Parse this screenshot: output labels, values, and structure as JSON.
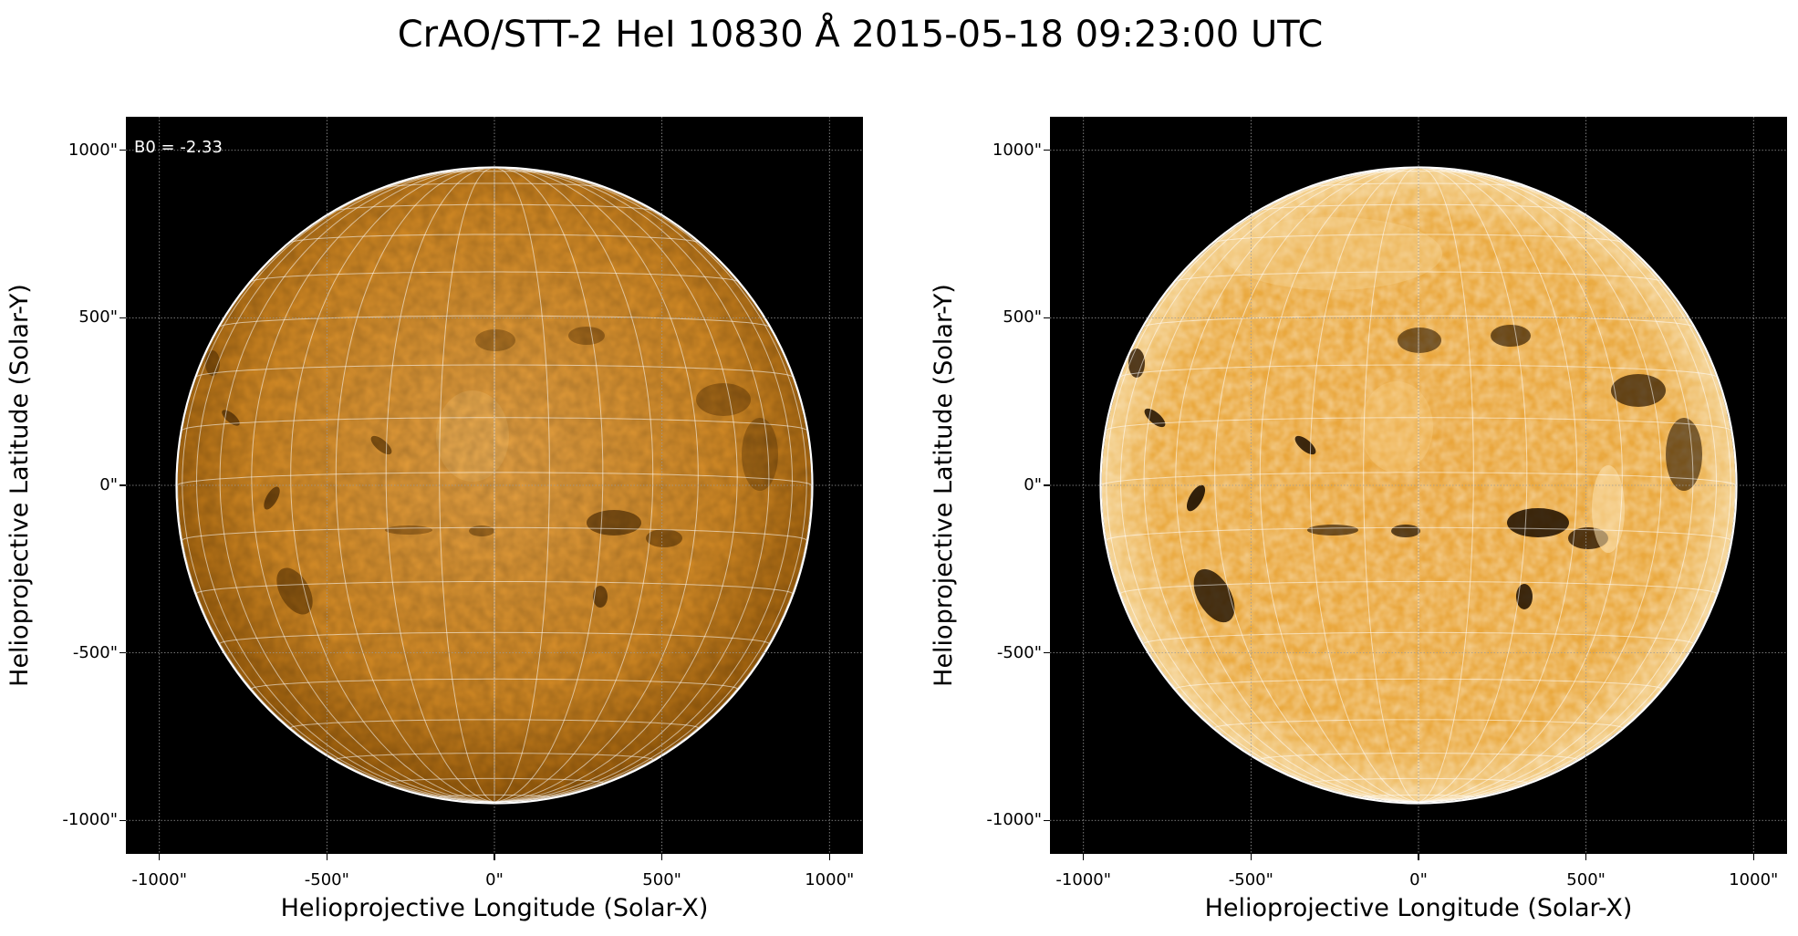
{
  "title": "CrAO/STT-2 HeI 10830 Å 2015-05-18 09:23:00 UTC",
  "panels": [
    {
      "id": "left",
      "annotation": "B0 = -2.33",
      "xlabel": "Helioprojective Longitude (Solar-X)",
      "ylabel": "Helioprojective Latitude (Solar-Y)",
      "xticks": [
        "-1000\"",
        "-500\"",
        "0\"",
        "500\"",
        "1000\""
      ],
      "yticks": [
        "1000\"",
        "500\"",
        "0\"",
        "-500\"",
        "-1000\""
      ],
      "disk_colors": {
        "center": "#e7a040",
        "edge": "#c27a16",
        "limb": "#8d5408"
      }
    },
    {
      "id": "right",
      "annotation": "",
      "xlabel": "Helioprojective Longitude (Solar-X)",
      "ylabel": "Helioprojective Latitude (Solar-Y)",
      "xticks": [
        "-1000\"",
        "-500\"",
        "0\"",
        "500\"",
        "1000\""
      ],
      "yticks": [
        "1000\"",
        "500\"",
        "0\"",
        "-500\"",
        "-1000\""
      ],
      "disk_colors": {
        "center": "#f1b554",
        "edge": "#e9a43c",
        "limb": "#f6d9a0"
      }
    }
  ],
  "axes": {
    "xlim": [
      -1100,
      1100
    ],
    "ylim": [
      -1100,
      1100
    ],
    "tick_values": [
      -1000,
      -500,
      0,
      500,
      1000
    ],
    "solar_radius_arcsec": 946,
    "b0_deg": -2.33,
    "background": "#000000",
    "grid": true
  }
}
